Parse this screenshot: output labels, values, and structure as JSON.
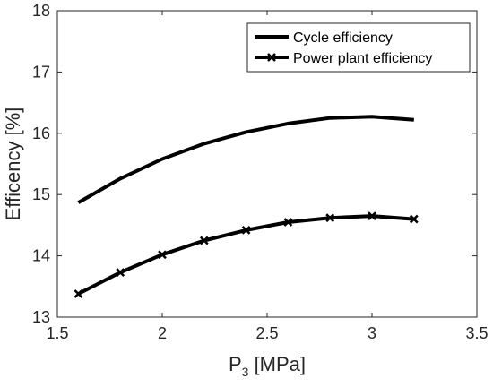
{
  "chart_data": {
    "type": "line",
    "xlabel": "P",
    "xlabel_subscript": "3",
    "xlabel_suffix": " [MPa]",
    "ylabel": "Efficency [%]",
    "xlim": [
      1.5,
      3.5
    ],
    "ylim": [
      13,
      18
    ],
    "xticks": [
      1.5,
      2,
      2.5,
      3,
      3.5
    ],
    "xtick_labels": [
      "1.5",
      "2",
      "2.5",
      "3",
      "3.5"
    ],
    "yticks": [
      13,
      14,
      15,
      16,
      17,
      18
    ],
    "ytick_labels": [
      "13",
      "14",
      "15",
      "16",
      "17",
      "18"
    ],
    "grid": false,
    "legend_position": "top-right",
    "series": [
      {
        "name": "Cycle efficiency",
        "marker": "none",
        "color": "#000000",
        "x": [
          1.6,
          1.8,
          2.0,
          2.2,
          2.4,
          2.6,
          2.8,
          3.0,
          3.2
        ],
        "y": [
          14.87,
          15.26,
          15.58,
          15.83,
          16.02,
          16.16,
          16.25,
          16.27,
          16.22
        ]
      },
      {
        "name": "Power plant efficiency",
        "marker": "x",
        "color": "#000000",
        "x": [
          1.6,
          1.8,
          2.0,
          2.2,
          2.4,
          2.6,
          2.8,
          3.0,
          3.2
        ],
        "y": [
          13.38,
          13.73,
          14.02,
          14.25,
          14.42,
          14.55,
          14.62,
          14.65,
          14.6
        ]
      }
    ]
  }
}
